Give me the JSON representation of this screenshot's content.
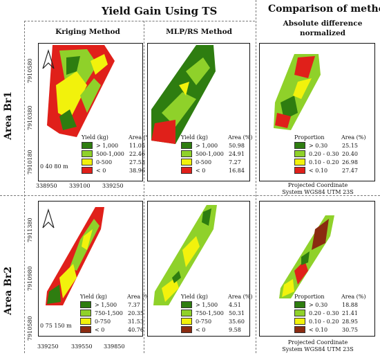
{
  "titles": {
    "main": "Yield Gain Using TS",
    "comparison": "Comparison of methods",
    "comparison_sub1": "Absolute difference",
    "comparison_sub2": "normalized"
  },
  "columns": {
    "kriging": "Kriging Method",
    "mlp": "MLP/RS Method"
  },
  "rows": {
    "br1": "Area Br1",
    "br2": "Area Br2"
  },
  "colors": {
    "dark_green": "#2e7d10",
    "light_green": "#8fd12a",
    "yellow": "#f2f20c",
    "red": "#e0201a",
    "brown": "#8a2a10"
  },
  "br1": {
    "y_ticks": [
      "7910580",
      "7910380",
      "7910180"
    ],
    "x_ticks": [
      "338950",
      "339100",
      "339250"
    ],
    "scale_bar": "0   40  80 m",
    "kriging_legend": {
      "header_left": "Yield (kg)",
      "header_right": "Area (%)",
      "rows": [
        {
          "label": "> 1,000",
          "value": "11.05",
          "color": "#2e7d10"
        },
        {
          "label": "500-1,000",
          "value": "22.46",
          "color": "#8fd12a"
        },
        {
          "label": "0-500",
          "value": "27.53",
          "color": "#f2f20c"
        },
        {
          "label": "< 0",
          "value": "38.96",
          "color": "#e0201a"
        }
      ]
    },
    "mlp_legend": {
      "header_left": "Yield (kg)",
      "header_right": "Area (%)",
      "rows": [
        {
          "label": "> 1,000",
          "value": "50.98",
          "color": "#2e7d10"
        },
        {
          "label": "500-1,000",
          "value": "24.91",
          "color": "#8fd12a"
        },
        {
          "label": "0-500",
          "value": "7.27",
          "color": "#f2f20c"
        },
        {
          "label": "< 0",
          "value": "16.84",
          "color": "#e0201a"
        }
      ]
    },
    "comparison_legend": {
      "header_left": "Proportion",
      "header_right": "Area (%)",
      "rows": [
        {
          "label": "> 0.30",
          "value": "25.15",
          "color": "#2e7d10"
        },
        {
          "label": "0.20 - 0.30",
          "value": "20.40",
          "color": "#8fd12a"
        },
        {
          "label": "0.10 - 0.20",
          "value": "26.98",
          "color": "#f2f20c"
        },
        {
          "label": "< 0.10",
          "value": "27.47",
          "color": "#e0201a"
        }
      ]
    },
    "note1": "Projected Coordinate",
    "note2": "System WGS84 UTM 23S"
  },
  "br2": {
    "y_ticks": [
      "7911380",
      "7910980",
      "7910580"
    ],
    "x_ticks": [
      "339250",
      "339550",
      "339850"
    ],
    "scale_bar": "0   75  150 m",
    "kriging_legend": {
      "header_left": "Yield (kg)",
      "header_right": "Area (%)",
      "rows": [
        {
          "label": "> 1,500",
          "value": "7.37",
          "color": "#2e7d10"
        },
        {
          "label": "750-1,500",
          "value": "20.35",
          "color": "#8fd12a"
        },
        {
          "label": "0-750",
          "value": "31.53",
          "color": "#f2f20c"
        },
        {
          "label": "< 0",
          "value": "40.76",
          "color": "#8a2a10"
        }
      ]
    },
    "mlp_legend": {
      "header_left": "Yield (kg)",
      "header_right": "Area (%)",
      "rows": [
        {
          "label": "> 1,500",
          "value": "4.51",
          "color": "#2e7d10"
        },
        {
          "label": "750-1,500",
          "value": "50.31",
          "color": "#8fd12a"
        },
        {
          "label": "0-750",
          "value": "35.60",
          "color": "#f2f20c"
        },
        {
          "label": "< 0",
          "value": "9.58",
          "color": "#8a2a10"
        }
      ]
    },
    "comparison_legend": {
      "header_left": "Proportion",
      "header_right": "Area (%)",
      "rows": [
        {
          "label": "> 0.30",
          "value": "18.88",
          "color": "#2e7d10"
        },
        {
          "label": "0.20 - 0.30",
          "value": "21.41",
          "color": "#8fd12a"
        },
        {
          "label": "0.10 - 0.20",
          "value": "28.95",
          "color": "#f2f20c"
        },
        {
          "label": "< 0.10",
          "value": "30.75",
          "color": "#8a2a10"
        }
      ]
    },
    "note1": "Projected Coordinate",
    "note2": "System WGS84 UTM 23S"
  }
}
